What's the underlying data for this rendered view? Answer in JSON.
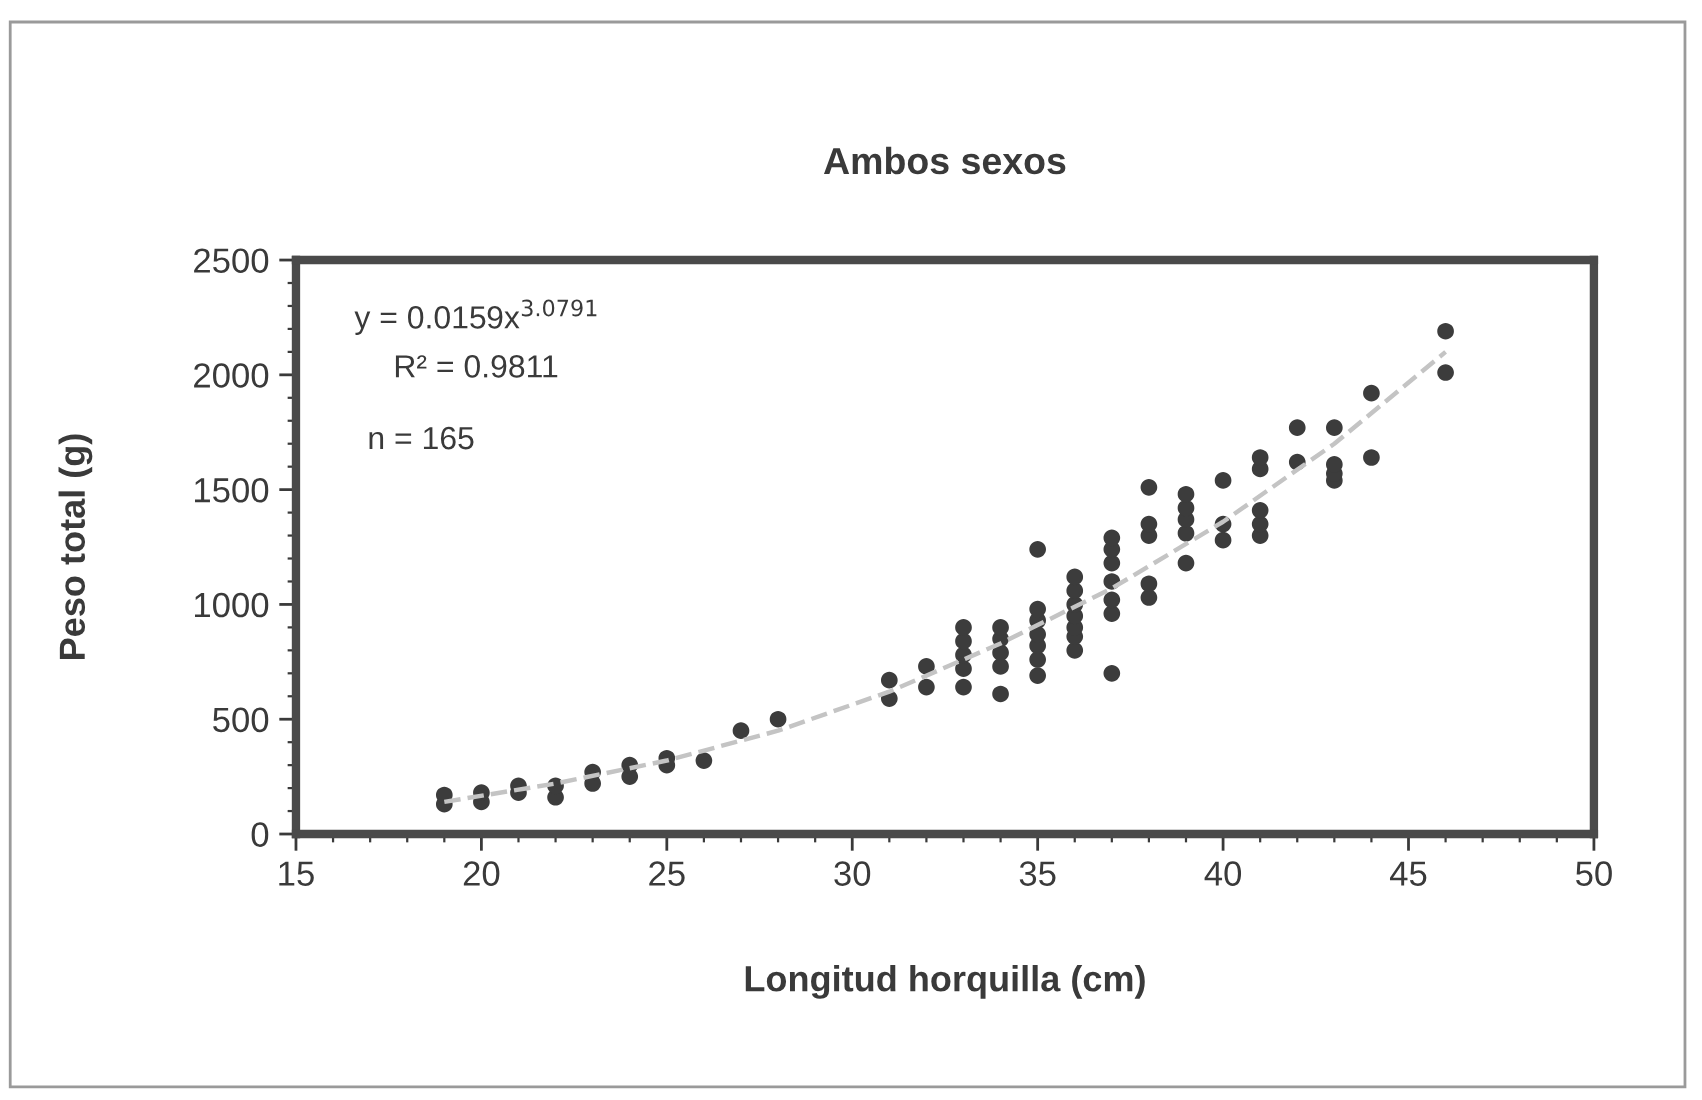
{
  "chart_data": {
    "type": "scatter",
    "title": "Ambos sexos",
    "xlabel": "Longitud horquilla (cm)",
    "ylabel": "Peso total (g)",
    "annotations": [
      "y = 0.0159x$^{3.0791}$",
      "R² = 0.9811",
      "n = 165"
    ],
    "marker": "circle",
    "xlim": [
      15,
      50
    ],
    "ylim": [
      0,
      2500
    ],
    "xticks": [
      15,
      {
        "value": 16,
        "label": null
      },
      {
        "value": 17,
        "label": null
      },
      {
        "value": 18,
        "label": null
      },
      {
        "value": 19,
        "label": null
      },
      20,
      {
        "value": 21,
        "label": null
      },
      {
        "value": 22,
        "label": null
      },
      {
        "value": 23,
        "label": null
      },
      {
        "value": 24,
        "label": null
      },
      25,
      {
        "value": 26,
        "label": null
      },
      {
        "value": 27,
        "label": null
      },
      {
        "value": 28,
        "label": null
      },
      {
        "value": 29,
        "label": null
      },
      30,
      {
        "value": 31,
        "label": null
      },
      {
        "value": 32,
        "label": null
      },
      {
        "value": 33,
        "label": null
      },
      {
        "value": 34,
        "label": null
      },
      35,
      {
        "value": 36,
        "label": null
      },
      {
        "value": 37,
        "label": null
      },
      {
        "value": 38,
        "label": null
      },
      {
        "value": 39,
        "label": null
      },
      40,
      {
        "value": 41,
        "label": null
      },
      {
        "value": 42,
        "label": null
      },
      {
        "value": 43,
        "label": null
      },
      {
        "value": 44,
        "label": null
      },
      45,
      {
        "value": 46,
        "label": null
      },
      {
        "value": 47,
        "label": null
      },
      {
        "value": 48,
        "label": null
      },
      {
        "value": 49,
        "label": null
      },
      50
    ],
    "yticks": [
      0,
      {
        "value": 100,
        "label": null
      },
      {
        "value": 200,
        "label": null
      },
      {
        "value": 300,
        "label": null
      },
      {
        "value": 400,
        "label": null
      },
      500,
      {
        "value": 600,
        "label": null
      },
      {
        "value": 700,
        "label": null
      },
      {
        "value": 800,
        "label": null
      },
      {
        "value": 900,
        "label": null
      },
      1000,
      {
        "value": 1100,
        "label": null
      },
      {
        "value": 1200,
        "label": null
      },
      {
        "value": 1300,
        "label": null
      },
      {
        "value": 1400,
        "label": null
      },
      1500,
      {
        "value": 1600,
        "label": null
      },
      {
        "value": 1700,
        "label": null
      },
      {
        "value": 1800,
        "label": null
      },
      {
        "value": 1900,
        "label": null
      },
      2000,
      {
        "value": 2100,
        "label": null
      },
      {
        "value": 2200,
        "label": null
      },
      {
        "value": 2300,
        "label": null
      },
      {
        "value": 2400,
        "label": null
      },
      2500
    ],
    "series": [
      {
        "type": "scatter",
        "color": "#3c3c3c",
        "x": [
          19,
          19,
          20,
          20,
          21,
          21,
          22,
          22,
          23,
          23,
          24,
          24,
          25,
          25,
          26,
          27,
          28,
          31,
          31,
          32,
          32,
          33,
          33,
          33,
          33,
          33,
          34,
          34,
          34,
          34,
          34,
          35,
          35,
          35,
          35,
          35,
          35,
          35,
          36,
          36,
          36,
          36,
          36,
          36,
          36,
          37,
          37,
          37,
          37,
          37,
          37,
          37,
          38,
          38,
          38,
          38,
          38,
          39,
          39,
          39,
          39,
          39,
          40,
          40,
          40,
          41,
          41,
          41,
          41,
          41,
          42,
          42,
          43,
          43,
          43,
          43,
          44,
          44,
          46,
          46
        ],
        "values": [
          130,
          170,
          140,
          180,
          180,
          210,
          160,
          210,
          220,
          270,
          250,
          300,
          300,
          330,
          320,
          450,
          500,
          590,
          670,
          640,
          730,
          640,
          720,
          780,
          840,
          900,
          610,
          730,
          790,
          850,
          900,
          690,
          760,
          820,
          870,
          930,
          980,
          1240,
          800,
          860,
          900,
          950,
          1000,
          1060,
          1120,
          700,
          960,
          1020,
          1100,
          1180,
          1240,
          1290,
          1030,
          1090,
          1300,
          1350,
          1510,
          1180,
          1310,
          1370,
          1420,
          1480,
          1280,
          1350,
          1540,
          1300,
          1350,
          1410,
          1590,
          1640,
          1620,
          1770,
          1540,
          1570,
          1610,
          1770,
          1640,
          1920,
          2010,
          2190
        ]
      },
      {
        "type": "line",
        "color": "#c4c4c4",
        "line_style": "dashed",
        "marker": "none",
        "x": [
          19,
          22,
          25,
          28,
          31,
          34,
          37,
          40,
          43,
          46
        ],
        "values": [
          140,
          220,
          320,
          450,
          620,
          830,
          1070,
          1360,
          1700,
          2100
        ]
      }
    ]
  }
}
